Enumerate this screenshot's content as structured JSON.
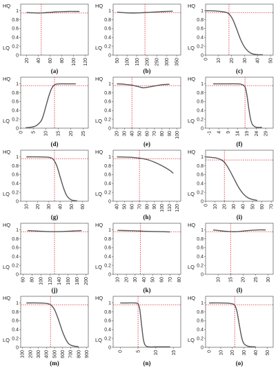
{
  "chart_data": [
    {
      "id": "a",
      "type": "line",
      "caption": "(a)",
      "y_top_label": "HQ",
      "y_bottom_label": "LQ",
      "xlim": [
        10,
        125
      ],
      "ylim": [
        0,
        1.15
      ],
      "xticks": [
        20,
        40,
        60,
        80,
        100,
        120
      ],
      "yticks": [
        0,
        0.2,
        0.4,
        0.6,
        0.8,
        1
      ],
      "threshold_x": 45,
      "threshold_y": 0.95,
      "x_labels_rotated": true,
      "series": [
        {
          "x": [
            20,
            30,
            40,
            50,
            60,
            70,
            80,
            90,
            100,
            110
          ],
          "y": [
            0.96,
            0.955,
            0.95,
            0.955,
            0.965,
            0.975,
            0.98,
            0.985,
            0.985,
            0.985
          ]
        }
      ]
    },
    {
      "id": "b",
      "type": "line",
      "caption": "(b)",
      "y_top_label": "HQ",
      "y_bottom_label": "LQ",
      "xlim": [
        30,
        370
      ],
      "ylim": [
        0,
        1.15
      ],
      "xticks": [
        50,
        100,
        150,
        200,
        250,
        300,
        350
      ],
      "yticks": [
        0,
        0.2,
        0.4,
        0.6,
        0.8,
        1
      ],
      "threshold_x": 190,
      "threshold_y": 0.96,
      "x_labels_rotated": true,
      "series": [
        {
          "x": [
            50,
            90,
            130,
            170,
            210,
            250,
            290,
            330
          ],
          "y": [
            0.97,
            0.955,
            0.95,
            0.955,
            0.965,
            0.975,
            0.985,
            0.99
          ]
        }
      ]
    },
    {
      "id": "c",
      "type": "line",
      "caption": "(c)",
      "y_top_label": "HQ",
      "y_bottom_label": "LQ",
      "xlim": [
        0,
        52
      ],
      "ylim": [
        0,
        1.15
      ],
      "xticks": [
        0,
        10,
        20,
        30,
        40,
        50
      ],
      "yticks": [
        0,
        0.2,
        0.4,
        0.6,
        0.8,
        1
      ],
      "threshold_x": 18,
      "threshold_y": 0.96,
      "x_labels_rotated": true,
      "series": [
        {
          "x": [
            0,
            5,
            10,
            15,
            18,
            21,
            24,
            27,
            30,
            33,
            36,
            40,
            44
          ],
          "y": [
            1,
            1,
            0.99,
            0.97,
            0.93,
            0.8,
            0.58,
            0.35,
            0.18,
            0.08,
            0.03,
            0.01,
            0.01
          ]
        }
      ]
    },
    {
      "id": "d",
      "type": "line",
      "caption": "(d)",
      "y_top_label": "HQ",
      "y_bottom_label": "LQ",
      "xlim": [
        0,
        27
      ],
      "ylim": [
        0,
        1.15
      ],
      "xticks": [
        0,
        5,
        10,
        15,
        20,
        25
      ],
      "yticks": [
        0,
        0.2,
        0.4,
        0.6,
        0.8,
        1
      ],
      "threshold_x": 13.5,
      "threshold_y": 0.96,
      "x_labels_rotated": true,
      "series": [
        {
          "x": [
            2,
            4,
            6,
            8,
            9,
            10,
            11,
            12,
            13,
            14,
            16,
            18,
            20,
            22
          ],
          "y": [
            0.01,
            0.02,
            0.05,
            0.15,
            0.28,
            0.48,
            0.68,
            0.85,
            0.95,
            0.99,
            1,
            1,
            1,
            1
          ]
        }
      ]
    },
    {
      "id": "e",
      "type": "line",
      "caption": "(e)",
      "y_top_label": "HQ",
      "y_bottom_label": "LQ",
      "xlim": [
        15,
        105
      ],
      "ylim": [
        0,
        1.15
      ],
      "xticks": [
        20,
        30,
        40,
        50,
        60,
        70,
        80,
        90,
        100
      ],
      "yticks": [
        0,
        0.2,
        0.4,
        0.6,
        0.8,
        1
      ],
      "threshold_x": 40,
      "threshold_y": 0.96,
      "x_labels_rotated": true,
      "series": [
        {
          "x": [
            20,
            30,
            40,
            50,
            55,
            60,
            70,
            80,
            90
          ],
          "y": [
            1,
            0.99,
            0.97,
            0.93,
            0.91,
            0.92,
            0.95,
            0.98,
            0.99
          ]
        }
      ]
    },
    {
      "id": "f",
      "type": "line",
      "caption": "(f)",
      "y_top_label": "HQ",
      "y_bottom_label": "LQ",
      "xlim": [
        -3,
        33
      ],
      "ylim": [
        0,
        1.15
      ],
      "xticks": [
        -1,
        4,
        9,
        14,
        19,
        24,
        29
      ],
      "yticks": [
        0,
        0.2,
        0.4,
        0.6,
        0.8,
        1
      ],
      "threshold_x": 18,
      "threshold_y": 0.96,
      "x_labels_rotated": true,
      "series": [
        {
          "x": [
            1,
            5,
            9,
            13,
            16,
            18,
            19,
            20,
            21,
            22,
            24,
            27
          ],
          "y": [
            1,
            1,
            1,
            1,
            0.99,
            0.93,
            0.75,
            0.45,
            0.2,
            0.08,
            0.02,
            0.02
          ]
        }
      ]
    },
    {
      "id": "g",
      "type": "line",
      "caption": "(g)",
      "y_top_label": "HQ",
      "y_bottom_label": "LQ",
      "xlim": [
        5,
        65
      ],
      "ylim": [
        0,
        1.15
      ],
      "xticks": [
        10,
        20,
        30,
        40,
        50,
        60
      ],
      "yticks": [
        0,
        0.2,
        0.4,
        0.6,
        0.8,
        1
      ],
      "threshold_x": 35,
      "threshold_y": 0.96,
      "x_labels_rotated": true,
      "series": [
        {
          "x": [
            10,
            20,
            30,
            34,
            37,
            40,
            43,
            46,
            50,
            55
          ],
          "y": [
            1,
            1,
            0.99,
            0.94,
            0.8,
            0.55,
            0.3,
            0.12,
            0.03,
            0.01
          ]
        }
      ]
    },
    {
      "id": "h",
      "type": "line",
      "caption": "(h)",
      "y_top_label": "HQ",
      "y_bottom_label": "LQ",
      "xlim": [
        35,
        125
      ],
      "ylim": [
        0,
        1.15
      ],
      "xticks": [
        40,
        50,
        60,
        70,
        80,
        90,
        100,
        110,
        120
      ],
      "yticks": [
        0,
        0.2,
        0.4,
        0.6,
        0.8,
        1
      ],
      "threshold_x": 70,
      "threshold_y": 0.96,
      "x_labels_rotated": true,
      "series": [
        {
          "x": [
            40,
            50,
            60,
            70,
            80,
            90,
            100,
            110,
            115
          ],
          "y": [
            1,
            0.995,
            0.99,
            0.97,
            0.94,
            0.88,
            0.8,
            0.7,
            0.63
          ]
        }
      ]
    },
    {
      "id": "i",
      "type": "line",
      "caption": "(i)",
      "y_top_label": "HQ",
      "y_bottom_label": "LQ",
      "xlim": [
        0,
        72
      ],
      "ylim": [
        0,
        1.15
      ],
      "xticks": [
        0,
        10,
        20,
        30,
        40,
        50,
        60,
        70
      ],
      "yticks": [
        0,
        0.2,
        0.4,
        0.6,
        0.8,
        1
      ],
      "threshold_x": 20,
      "threshold_y": 0.93,
      "x_labels_rotated": true,
      "series": [
        {
          "x": [
            0,
            10,
            15,
            20,
            25,
            30,
            35,
            40,
            45,
            50,
            55
          ],
          "y": [
            1,
            0.98,
            0.95,
            0.88,
            0.72,
            0.52,
            0.32,
            0.17,
            0.08,
            0.04,
            0.02
          ]
        }
      ]
    },
    {
      "id": "j",
      "type": "line",
      "caption": "(j)",
      "y_top_label": "HQ",
      "y_bottom_label": "LQ",
      "xlim": [
        55,
        205
      ],
      "ylim": [
        0,
        1.15
      ],
      "xticks": [
        60,
        80,
        100,
        120,
        140,
        160,
        180,
        200
      ],
      "yticks": [
        0,
        0.2,
        0.4,
        0.6,
        0.8,
        1
      ],
      "threshold_x": 130,
      "threshold_y": 0.96,
      "x_labels_rotated": true,
      "series": [
        {
          "x": [
            70,
            90,
            110,
            130,
            150,
            170,
            190
          ],
          "y": [
            0.985,
            0.975,
            0.965,
            0.96,
            0.965,
            0.975,
            0.985
          ]
        }
      ]
    },
    {
      "id": "k",
      "type": "line",
      "caption": "(k)",
      "y_top_label": "HQ",
      "y_bottom_label": "LQ",
      "xlim": [
        5,
        82
      ],
      "ylim": [
        0,
        1.15
      ],
      "xticks": [
        10,
        20,
        30,
        40,
        50,
        60,
        70,
        80
      ],
      "yticks": [
        0,
        0.2,
        0.4,
        0.6,
        0.8,
        1
      ],
      "threshold_x": 36,
      "threshold_y": 0.96,
      "x_labels_rotated": true,
      "series": [
        {
          "x": [
            10,
            20,
            30,
            40,
            50,
            60,
            70
          ],
          "y": [
            0.99,
            0.985,
            0.98,
            0.97,
            0.965,
            0.96,
            0.955
          ]
        }
      ]
    },
    {
      "id": "l",
      "type": "line",
      "caption": "(l)",
      "y_top_label": "HQ",
      "y_bottom_label": "LQ",
      "xlim": [
        5,
        32
      ],
      "ylim": [
        0,
        1.15
      ],
      "xticks": [
        10,
        15,
        20,
        25,
        30
      ],
      "yticks": [
        0,
        0.2,
        0.4,
        0.6,
        0.8,
        1
      ],
      "threshold_x": 15,
      "threshold_y": 0.96,
      "x_labels_rotated": true,
      "series": [
        {
          "x": [
            8,
            11,
            14,
            17,
            20,
            23,
            26,
            29
          ],
          "y": [
            1,
            0.98,
            0.965,
            0.96,
            0.975,
            0.99,
            1,
            1
          ]
        }
      ]
    },
    {
      "id": "m",
      "type": "line",
      "caption": "(m)",
      "y_top_label": "HQ",
      "y_bottom_label": "LQ",
      "xlim": [
        80,
        920
      ],
      "ylim": [
        0,
        1.15
      ],
      "xticks": [
        100,
        200,
        300,
        400,
        500,
        600,
        700,
        800,
        900
      ],
      "yticks": [
        0,
        0.2,
        0.4,
        0.6,
        0.8,
        1
      ],
      "threshold_x": 450,
      "threshold_y": 0.96,
      "x_labels_rotated": true,
      "series": [
        {
          "x": [
            150,
            300,
            400,
            450,
            500,
            550,
            600,
            650,
            700,
            800
          ],
          "y": [
            1,
            1,
            0.99,
            0.96,
            0.85,
            0.62,
            0.35,
            0.15,
            0.05,
            0.01
          ]
        }
      ]
    },
    {
      "id": "n",
      "type": "line",
      "caption": "(n)",
      "y_top_label": "HQ",
      "y_bottom_label": "LQ",
      "xlim": [
        -2,
        17
      ],
      "ylim": [
        0,
        1.15
      ],
      "xticks": [
        0,
        5,
        10,
        15
      ],
      "yticks": [
        0,
        0.2,
        0.4,
        0.6,
        0.8,
        1
      ],
      "threshold_x": 5,
      "threshold_y": 0.96,
      "x_labels_rotated": true,
      "series": [
        {
          "x": [
            0,
            2,
            4,
            5,
            5.5,
            6,
            6.5,
            7,
            8,
            10,
            14
          ],
          "y": [
            1,
            1,
            1,
            0.98,
            0.85,
            0.5,
            0.18,
            0.05,
            0.01,
            0.01,
            0.01
          ]
        }
      ]
    },
    {
      "id": "o",
      "type": "line",
      "caption": "(o)",
      "y_top_label": "HQ",
      "y_bottom_label": "LQ",
      "xlim": [
        -3,
        55
      ],
      "ylim": [
        0,
        1.15
      ],
      "xticks": [
        0,
        10,
        20,
        30,
        40,
        50
      ],
      "yticks": [
        0,
        0.2,
        0.4,
        0.6,
        0.8,
        1
      ],
      "threshold_x": 22,
      "threshold_y": 0.96,
      "x_labels_rotated": true,
      "series": [
        {
          "x": [
            0,
            10,
            18,
            22,
            24,
            26,
            28,
            30,
            34,
            40
          ],
          "y": [
            1,
            1,
            0.99,
            0.95,
            0.8,
            0.5,
            0.22,
            0.08,
            0.02,
            0.01
          ]
        }
      ]
    }
  ]
}
